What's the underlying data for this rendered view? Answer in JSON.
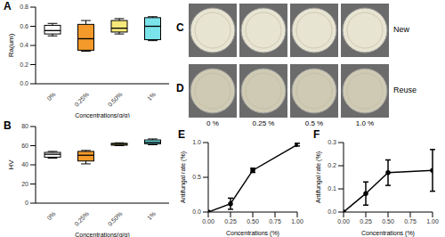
{
  "chart_data": [
    {
      "type": "box",
      "title": "A",
      "categories": [
        "0%",
        "0.25%",
        "0.50%",
        "1%"
      ],
      "boxes": [
        {
          "min": 0.5,
          "q1": 0.52,
          "median": 0.555,
          "q3": 0.61,
          "max": 0.63
        },
        {
          "min": 0.34,
          "q1": 0.35,
          "median": 0.47,
          "q3": 0.62,
          "max": 0.66
        },
        {
          "min": 0.52,
          "q1": 0.54,
          "median": 0.58,
          "q3": 0.66,
          "max": 0.68
        },
        {
          "min": 0.45,
          "q1": 0.46,
          "median": 0.6,
          "q3": 0.69,
          "max": 0.7
        }
      ],
      "colors": [
        "#ffffff",
        "#f39a2b",
        "#f7e87a",
        "#7be3ea"
      ],
      "x_label": "Concentrations(g/g)",
      "y_label": "Ra(um)",
      "ylim": [
        0,
        0.8
      ],
      "yticks": [
        {
          "value": 0,
          "label": "0.0"
        },
        {
          "value": 0.2,
          "label": "0.2"
        },
        {
          "value": 0.4,
          "label": "0.4"
        },
        {
          "value": 0.6,
          "label": "0.6"
        },
        {
          "value": 0.8,
          "label": "0.8"
        }
      ],
      "grid": false
    },
    {
      "type": "box",
      "title": "B",
      "categories": [
        "0%",
        "0.25%",
        "0.50%",
        "1%"
      ],
      "boxes": [
        {
          "min": 47,
          "q1": 48,
          "median": 51,
          "q3": 53,
          "max": 54
        },
        {
          "min": 41,
          "q1": 44,
          "median": 50,
          "q3": 54,
          "max": 55
        },
        {
          "min": 60,
          "q1": 60.5,
          "median": 61.5,
          "q3": 62.5,
          "max": 63
        },
        {
          "min": 61,
          "q1": 62,
          "median": 63.5,
          "q3": 66,
          "max": 67
        }
      ],
      "colors": [
        "#ffffff",
        "#f39a2b",
        "#f7e87a",
        "#6fe0e6"
      ],
      "x_label": "Concentrations(g/g)",
      "y_label": "HV",
      "ylim": [
        0,
        80
      ],
      "yticks": [
        0,
        20,
        40,
        60,
        80
      ],
      "grid": false
    },
    {
      "type": "line",
      "title": "E",
      "x": [
        0,
        0.25,
        0.5,
        1.0
      ],
      "values": [
        0,
        0.12,
        0.6,
        0.97
      ],
      "errors": [
        0,
        0.08,
        0.03,
        0.02
      ],
      "color": "#000000",
      "marker": "circle",
      "x_label": "Concentrations (%)",
      "y_label": "Antifungal rate (%)",
      "xlim": [
        0,
        1
      ],
      "xticks": [
        {
          "value": 0,
          "label": "0.00"
        },
        {
          "value": 0.25,
          "label": "0.25"
        },
        {
          "value": 0.5,
          "label": "0.50"
        },
        {
          "value": 0.75,
          "label": "0.75"
        },
        {
          "value": 1,
          "label": "1.00"
        }
      ],
      "ylim": [
        0,
        1
      ],
      "yticks": [
        {
          "value": 0,
          "label": "0.0"
        },
        {
          "value": 0.5,
          "label": "0.5"
        },
        {
          "value": 1,
          "label": "1.0"
        }
      ],
      "grid": false
    },
    {
      "type": "line",
      "title": "F",
      "x": [
        0,
        0.25,
        0.5,
        1.0
      ],
      "values": [
        0,
        0.08,
        0.17,
        0.18
      ],
      "errors": [
        0,
        0.05,
        0.055,
        0.09
      ],
      "color": "#000000",
      "marker": "circle",
      "x_label": "Concentrations (%)",
      "y_label": "Antifungal rate (%)",
      "xlim": [
        0,
        1
      ],
      "xticks": [
        {
          "value": 0,
          "label": "0.00"
        },
        {
          "value": 0.25,
          "label": "0.25"
        },
        {
          "value": 0.5,
          "label": "0.50"
        },
        {
          "value": 0.75,
          "label": "0.75"
        },
        {
          "value": 1,
          "label": "1.00"
        }
      ],
      "ylim": [
        0,
        0.3
      ],
      "yticks": [
        {
          "value": 0,
          "label": "0.0"
        },
        {
          "value": 0.1,
          "label": "0.1"
        },
        {
          "value": 0.2,
          "label": "0.2"
        },
        {
          "value": 0.3,
          "label": "0.3"
        }
      ],
      "grid": false
    }
  ],
  "plates": {
    "rows": [
      {
        "panel": "C",
        "label": "New"
      },
      {
        "panel": "D",
        "label": "Reuse"
      }
    ],
    "columns": [
      "0 %",
      "0.25 %",
      "0.5 %",
      "1.0 %"
    ]
  }
}
